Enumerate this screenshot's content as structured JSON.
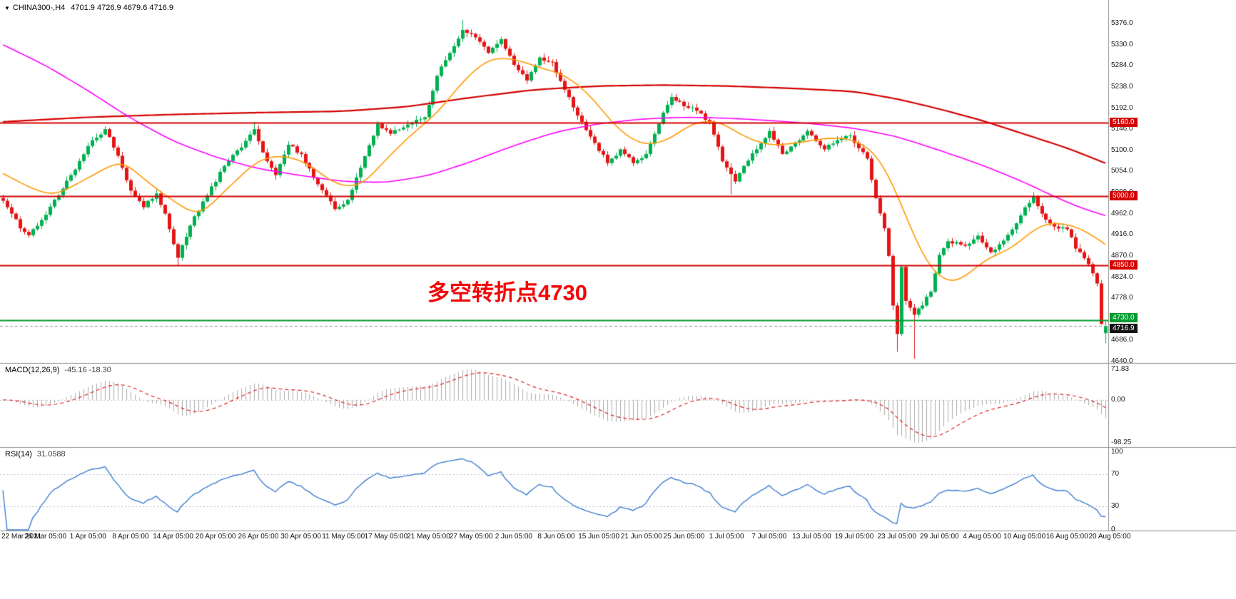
{
  "header": {
    "dropdown_icon": "▼",
    "symbol": "CHINA300-,H4",
    "ohlc": "4701.9 4726.9 4679.6 4716.9"
  },
  "annotation": {
    "text": "多空转折点4730",
    "color": "#f40606"
  },
  "chart_data": {
    "type": "candlestick",
    "symbol": "CHINA300-",
    "timeframe": "H4",
    "bars": 260,
    "candle_up_color": "#00b050",
    "candle_down_color": "#e51414",
    "price_axis": {
      "min": 4640,
      "max": 5376,
      "step": 46,
      "labels": [
        "5376.0",
        "5330.0",
        "5284.0",
        "5238.0",
        "5192.0",
        "5146.0",
        "5100.0",
        "5054.0",
        "5008.0",
        "4962.0",
        "4916.0",
        "4870.0",
        "4824.0",
        "4778.0",
        "4732.0",
        "4686.0",
        "4640.0"
      ]
    },
    "time_labels": [
      "22 Mar 2021",
      "26 Mar 05:00",
      "1 Apr 05:00",
      "8 Apr 05:00",
      "14 Apr 05:00",
      "20 Apr 05:00",
      "26 Apr 05:00",
      "30 Apr 05:00",
      "11 May 05:00",
      "17 May 05:00",
      "21 May 05:00",
      "27 May 05:00",
      "2 Jun 05:00",
      "8 Jun 05:00",
      "15 Jun 05:00",
      "21 Jun 05:00",
      "25 Jun 05:00",
      "1 Jul 05:00",
      "7 Jul 05:00",
      "13 Jul 05:00",
      "19 Jul 05:00",
      "23 Jul 05:00",
      "29 Jul 05:00",
      "4 Aug 05:00",
      "10 Aug 05:00",
      "16 Aug 05:00",
      "20 Aug 05:00"
    ],
    "price_path_anchors": [
      [
        0,
        4990
      ],
      [
        2,
        4962
      ],
      [
        4,
        4930
      ],
      [
        6,
        4915
      ],
      [
        9,
        4948
      ],
      [
        13,
        5002
      ],
      [
        17,
        5058
      ],
      [
        21,
        5122
      ],
      [
        24,
        5146
      ],
      [
        27,
        5088
      ],
      [
        30,
        5012
      ],
      [
        33,
        4976
      ],
      [
        36,
        5006
      ],
      [
        38,
        4962
      ],
      [
        41,
        4866
      ],
      [
        44,
        4936
      ],
      [
        48,
        5002
      ],
      [
        52,
        5066
      ],
      [
        56,
        5106
      ],
      [
        59,
        5146
      ],
      [
        62,
        5076
      ],
      [
        64,
        5046
      ],
      [
        67,
        5112
      ],
      [
        70,
        5092
      ],
      [
        74,
        5026
      ],
      [
        78,
        4972
      ],
      [
        81,
        4992
      ],
      [
        84,
        5062
      ],
      [
        88,
        5158
      ],
      [
        91,
        5136
      ],
      [
        95,
        5156
      ],
      [
        99,
        5172
      ],
      [
        102,
        5262
      ],
      [
        105,
        5312
      ],
      [
        108,
        5362
      ],
      [
        111,
        5346
      ],
      [
        114,
        5312
      ],
      [
        117,
        5342
      ],
      [
        120,
        5286
      ],
      [
        123,
        5252
      ],
      [
        126,
        5302
      ],
      [
        129,
        5292
      ],
      [
        132,
        5232
      ],
      [
        136,
        5162
      ],
      [
        139,
        5116
      ],
      [
        142,
        5072
      ],
      [
        145,
        5102
      ],
      [
        148,
        5072
      ],
      [
        151,
        5092
      ],
      [
        155,
        5182
      ],
      [
        157,
        5216
      ],
      [
        160,
        5196
      ],
      [
        163,
        5186
      ],
      [
        166,
        5162
      ],
      [
        169,
        5076
      ],
      [
        172,
        5032
      ],
      [
        174,
        5066
      ],
      [
        177,
        5102
      ],
      [
        180,
        5142
      ],
      [
        183,
        5092
      ],
      [
        186,
        5116
      ],
      [
        189,
        5142
      ],
      [
        193,
        5102
      ],
      [
        196,
        5122
      ],
      [
        199,
        5132
      ],
      [
        203,
        5082
      ],
      [
        205,
        4996
      ],
      [
        207,
        4930
      ],
      [
        208,
        4870
      ],
      [
        209,
        4762
      ],
      [
        210,
        4700
      ],
      [
        211,
        4846
      ],
      [
        212,
        4772
      ],
      [
        214,
        4742
      ],
      [
        216,
        4762
      ],
      [
        218,
        4792
      ],
      [
        220,
        4872
      ],
      [
        222,
        4902
      ],
      [
        226,
        4892
      ],
      [
        229,
        4914
      ],
      [
        232,
        4878
      ],
      [
        236,
        4916
      ],
      [
        239,
        4958
      ],
      [
        242,
        5000
      ],
      [
        244,
        4962
      ],
      [
        247,
        4934
      ],
      [
        250,
        4928
      ],
      [
        252,
        4886
      ],
      [
        255,
        4852
      ],
      [
        257,
        4810
      ],
      [
        258,
        4722
      ],
      [
        259,
        4716.9
      ]
    ],
    "wick_overrides": [
      {
        "bar": 24,
        "high": 5150
      },
      {
        "bar": 59,
        "high": 5162
      },
      {
        "bar": 108,
        "high": 5384
      },
      {
        "bar": 242,
        "high": 5009
      },
      {
        "bar": 41,
        "low": 4849
      },
      {
        "bar": 171,
        "low": 5004
      },
      {
        "bar": 210,
        "low": 4661
      },
      {
        "bar": 214,
        "low": 4646
      }
    ],
    "last_bar": {
      "open": 4701.9,
      "high": 4726.9,
      "low": 4679.6,
      "close": 4716.9
    },
    "moving_averages": [
      {
        "name": "slow-ma",
        "color": "#d40000",
        "width": 2.2,
        "anchors": [
          [
            0,
            5162
          ],
          [
            20,
            5172
          ],
          [
            40,
            5178
          ],
          [
            60,
            5182
          ],
          [
            80,
            5185
          ],
          [
            95,
            5195
          ],
          [
            110,
            5215
          ],
          [
            125,
            5232
          ],
          [
            140,
            5240
          ],
          [
            155,
            5242
          ],
          [
            170,
            5240
          ],
          [
            185,
            5235
          ],
          [
            200,
            5228
          ],
          [
            210,
            5212
          ],
          [
            220,
            5190
          ],
          [
            230,
            5165
          ],
          [
            240,
            5135
          ],
          [
            250,
            5105
          ],
          [
            259,
            5072
          ]
        ]
      },
      {
        "name": "mid-ma",
        "color": "#ff00ff",
        "width": 1.6,
        "anchors": [
          [
            0,
            5330
          ],
          [
            10,
            5285
          ],
          [
            20,
            5230
          ],
          [
            30,
            5170
          ],
          [
            40,
            5120
          ],
          [
            50,
            5085
          ],
          [
            60,
            5060
          ],
          [
            70,
            5045
          ],
          [
            80,
            5032
          ],
          [
            90,
            5030
          ],
          [
            100,
            5045
          ],
          [
            110,
            5075
          ],
          [
            120,
            5110
          ],
          [
            130,
            5140
          ],
          [
            140,
            5158
          ],
          [
            150,
            5168
          ],
          [
            160,
            5172
          ],
          [
            170,
            5170
          ],
          [
            180,
            5165
          ],
          [
            190,
            5158
          ],
          [
            200,
            5148
          ],
          [
            210,
            5130
          ],
          [
            220,
            5100
          ],
          [
            230,
            5068
          ],
          [
            240,
            5030
          ],
          [
            248,
            4995
          ],
          [
            254,
            4972
          ],
          [
            259,
            4958
          ]
        ]
      },
      {
        "name": "fast-ma",
        "color": "#ff9900",
        "width": 1.6,
        "anchors": [
          [
            0,
            5050
          ],
          [
            6,
            5020
          ],
          [
            12,
            5000
          ],
          [
            20,
            5040
          ],
          [
            28,
            5080
          ],
          [
            34,
            5030
          ],
          [
            40,
            4990
          ],
          [
            46,
            4955
          ],
          [
            52,
            5010
          ],
          [
            60,
            5080
          ],
          [
            66,
            5090
          ],
          [
            72,
            5070
          ],
          [
            78,
            5025
          ],
          [
            84,
            5020
          ],
          [
            90,
            5080
          ],
          [
            96,
            5135
          ],
          [
            102,
            5180
          ],
          [
            108,
            5250
          ],
          [
            114,
            5300
          ],
          [
            120,
            5300
          ],
          [
            126,
            5280
          ],
          [
            132,
            5265
          ],
          [
            138,
            5220
          ],
          [
            144,
            5150
          ],
          [
            150,
            5110
          ],
          [
            156,
            5120
          ],
          [
            162,
            5160
          ],
          [
            168,
            5165
          ],
          [
            174,
            5130
          ],
          [
            180,
            5110
          ],
          [
            186,
            5115
          ],
          [
            192,
            5125
          ],
          [
            198,
            5128
          ],
          [
            204,
            5105
          ],
          [
            208,
            5050
          ],
          [
            212,
            4960
          ],
          [
            216,
            4870
          ],
          [
            220,
            4820
          ],
          [
            224,
            4810
          ],
          [
            228,
            4840
          ],
          [
            232,
            4870
          ],
          [
            236,
            4880
          ],
          [
            240,
            4910
          ],
          [
            244,
            4940
          ],
          [
            248,
            4942
          ],
          [
            252,
            4935
          ],
          [
            256,
            4915
          ],
          [
            259,
            4895
          ]
        ]
      }
    ],
    "hlines": [
      {
        "price": 5160.0,
        "label": "5160.0",
        "color": "#d40000"
      },
      {
        "price": 5000.0,
        "label": "5000.0",
        "color": "#d40000"
      },
      {
        "price": 4850.0,
        "label": "4850.0",
        "color": "#d40000"
      },
      {
        "price": 4730.0,
        "label": "4730.0",
        "color": "#00992e"
      }
    ],
    "current_price": {
      "value": 4716.9,
      "label": "4716.9",
      "badge_color": "#141414"
    },
    "indicators": [
      {
        "name": "MACD",
        "title": "MACD(12,26,9)",
        "values": "-45.16 -18.30",
        "params": [
          12,
          26,
          9
        ],
        "axis_labels": [
          "71.83",
          "0.00",
          "-98.25"
        ],
        "histogram_color": "#ababab",
        "signal_color": "#e02020"
      },
      {
        "name": "RSI",
        "title": "RSI(14)",
        "values": "31.0588",
        "period": 14,
        "axis_labels": [
          "100",
          "70",
          "30",
          "0"
        ],
        "levels": [
          70,
          30
        ],
        "line_color": "#3f7ed0",
        "level_color": "#b9b9d8"
      }
    ]
  }
}
